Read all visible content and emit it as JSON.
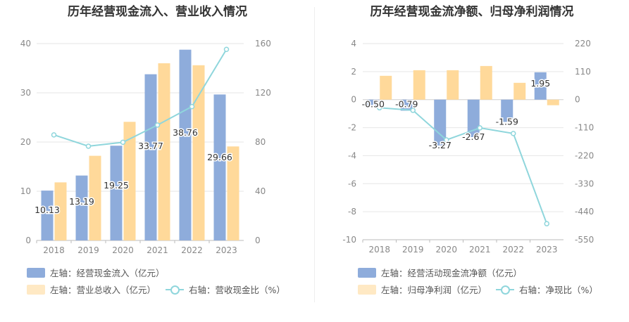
{
  "charts": [
    {
      "title": "历年经营现金流入、营业收入情况",
      "legend": {
        "bar1": "左轴：经营现金流入（亿元）",
        "bar2": "左轴：营业总收入（亿元）",
        "line": "右轴：营收现金比（%）"
      }
    },
    {
      "title": "历年经营现金流净额、归母净利润情况",
      "legend": {
        "bar1": "左轴：经营活动现金流净额（亿元）",
        "bar2": "左轴：归母净利润（亿元）",
        "line": "右轴：净现比（%）"
      }
    }
  ],
  "colors": {
    "bar1": "#8eacdb",
    "bar2": "#ffd99a",
    "line": "#8fd6dc"
  },
  "chart_data": [
    {
      "type": "bar",
      "title": "历年经营现金流入、营业收入情况",
      "categories": [
        "2018",
        "2019",
        "2020",
        "2021",
        "2022",
        "2023"
      ],
      "y_left": {
        "lim": [
          0,
          40
        ],
        "ticks": [
          0,
          10,
          20,
          30,
          40
        ]
      },
      "y_right": {
        "lim": [
          0,
          160
        ],
        "ticks": [
          0,
          40,
          80,
          120,
          160
        ]
      },
      "series": [
        {
          "name": "左轴：经营现金流入（亿元）",
          "type": "bar",
          "axis": "left",
          "values": [
            10.13,
            13.19,
            19.25,
            33.77,
            38.76,
            29.66
          ],
          "labels": [
            "10.13",
            "13.19",
            "19.25",
            "33.77",
            "38.76",
            "29.66"
          ]
        },
        {
          "name": "左轴：营业总收入（亿元）",
          "type": "bar",
          "axis": "left",
          "values": [
            11.8,
            17.2,
            24.1,
            36.0,
            35.6,
            19.1
          ]
        },
        {
          "name": "右轴：营收现金比（%）",
          "type": "line",
          "axis": "right",
          "values": [
            85.8,
            76.6,
            79.8,
            93.8,
            108.8,
            155.3
          ]
        }
      ]
    },
    {
      "type": "bar",
      "title": "历年经营现金流净额、归母净利润情况",
      "categories": [
        "2018",
        "2019",
        "2020",
        "2021",
        "2022",
        "2023"
      ],
      "y_left": {
        "lim": [
          -10,
          4
        ],
        "ticks": [
          -10,
          -8,
          -6,
          -4,
          -2,
          0,
          2,
          4
        ]
      },
      "y_right": {
        "lim": [
          -550,
          220
        ],
        "ticks": [
          -550,
          -440,
          -330,
          -220,
          -110,
          0,
          110,
          220
        ]
      },
      "series": [
        {
          "name": "左轴：经营活动现金流净额（亿元）",
          "type": "bar",
          "axis": "left",
          "values": [
            -0.5,
            -0.79,
            -3.27,
            -2.67,
            -1.59,
            1.95
          ],
          "labels": [
            "-0.50",
            "-0.79",
            "-3.27",
            "-2.67",
            "-1.59",
            "1.95"
          ]
        },
        {
          "name": "左轴：归母净利润（亿元）",
          "type": "bar",
          "axis": "left",
          "values": [
            1.7,
            2.1,
            2.1,
            2.4,
            1.2,
            -0.4
          ]
        },
        {
          "name": "右轴：净现比（%）",
          "type": "line",
          "axis": "right",
          "values": [
            -32,
            -42,
            -158,
            -111,
            -133,
            -487
          ]
        }
      ]
    }
  ]
}
